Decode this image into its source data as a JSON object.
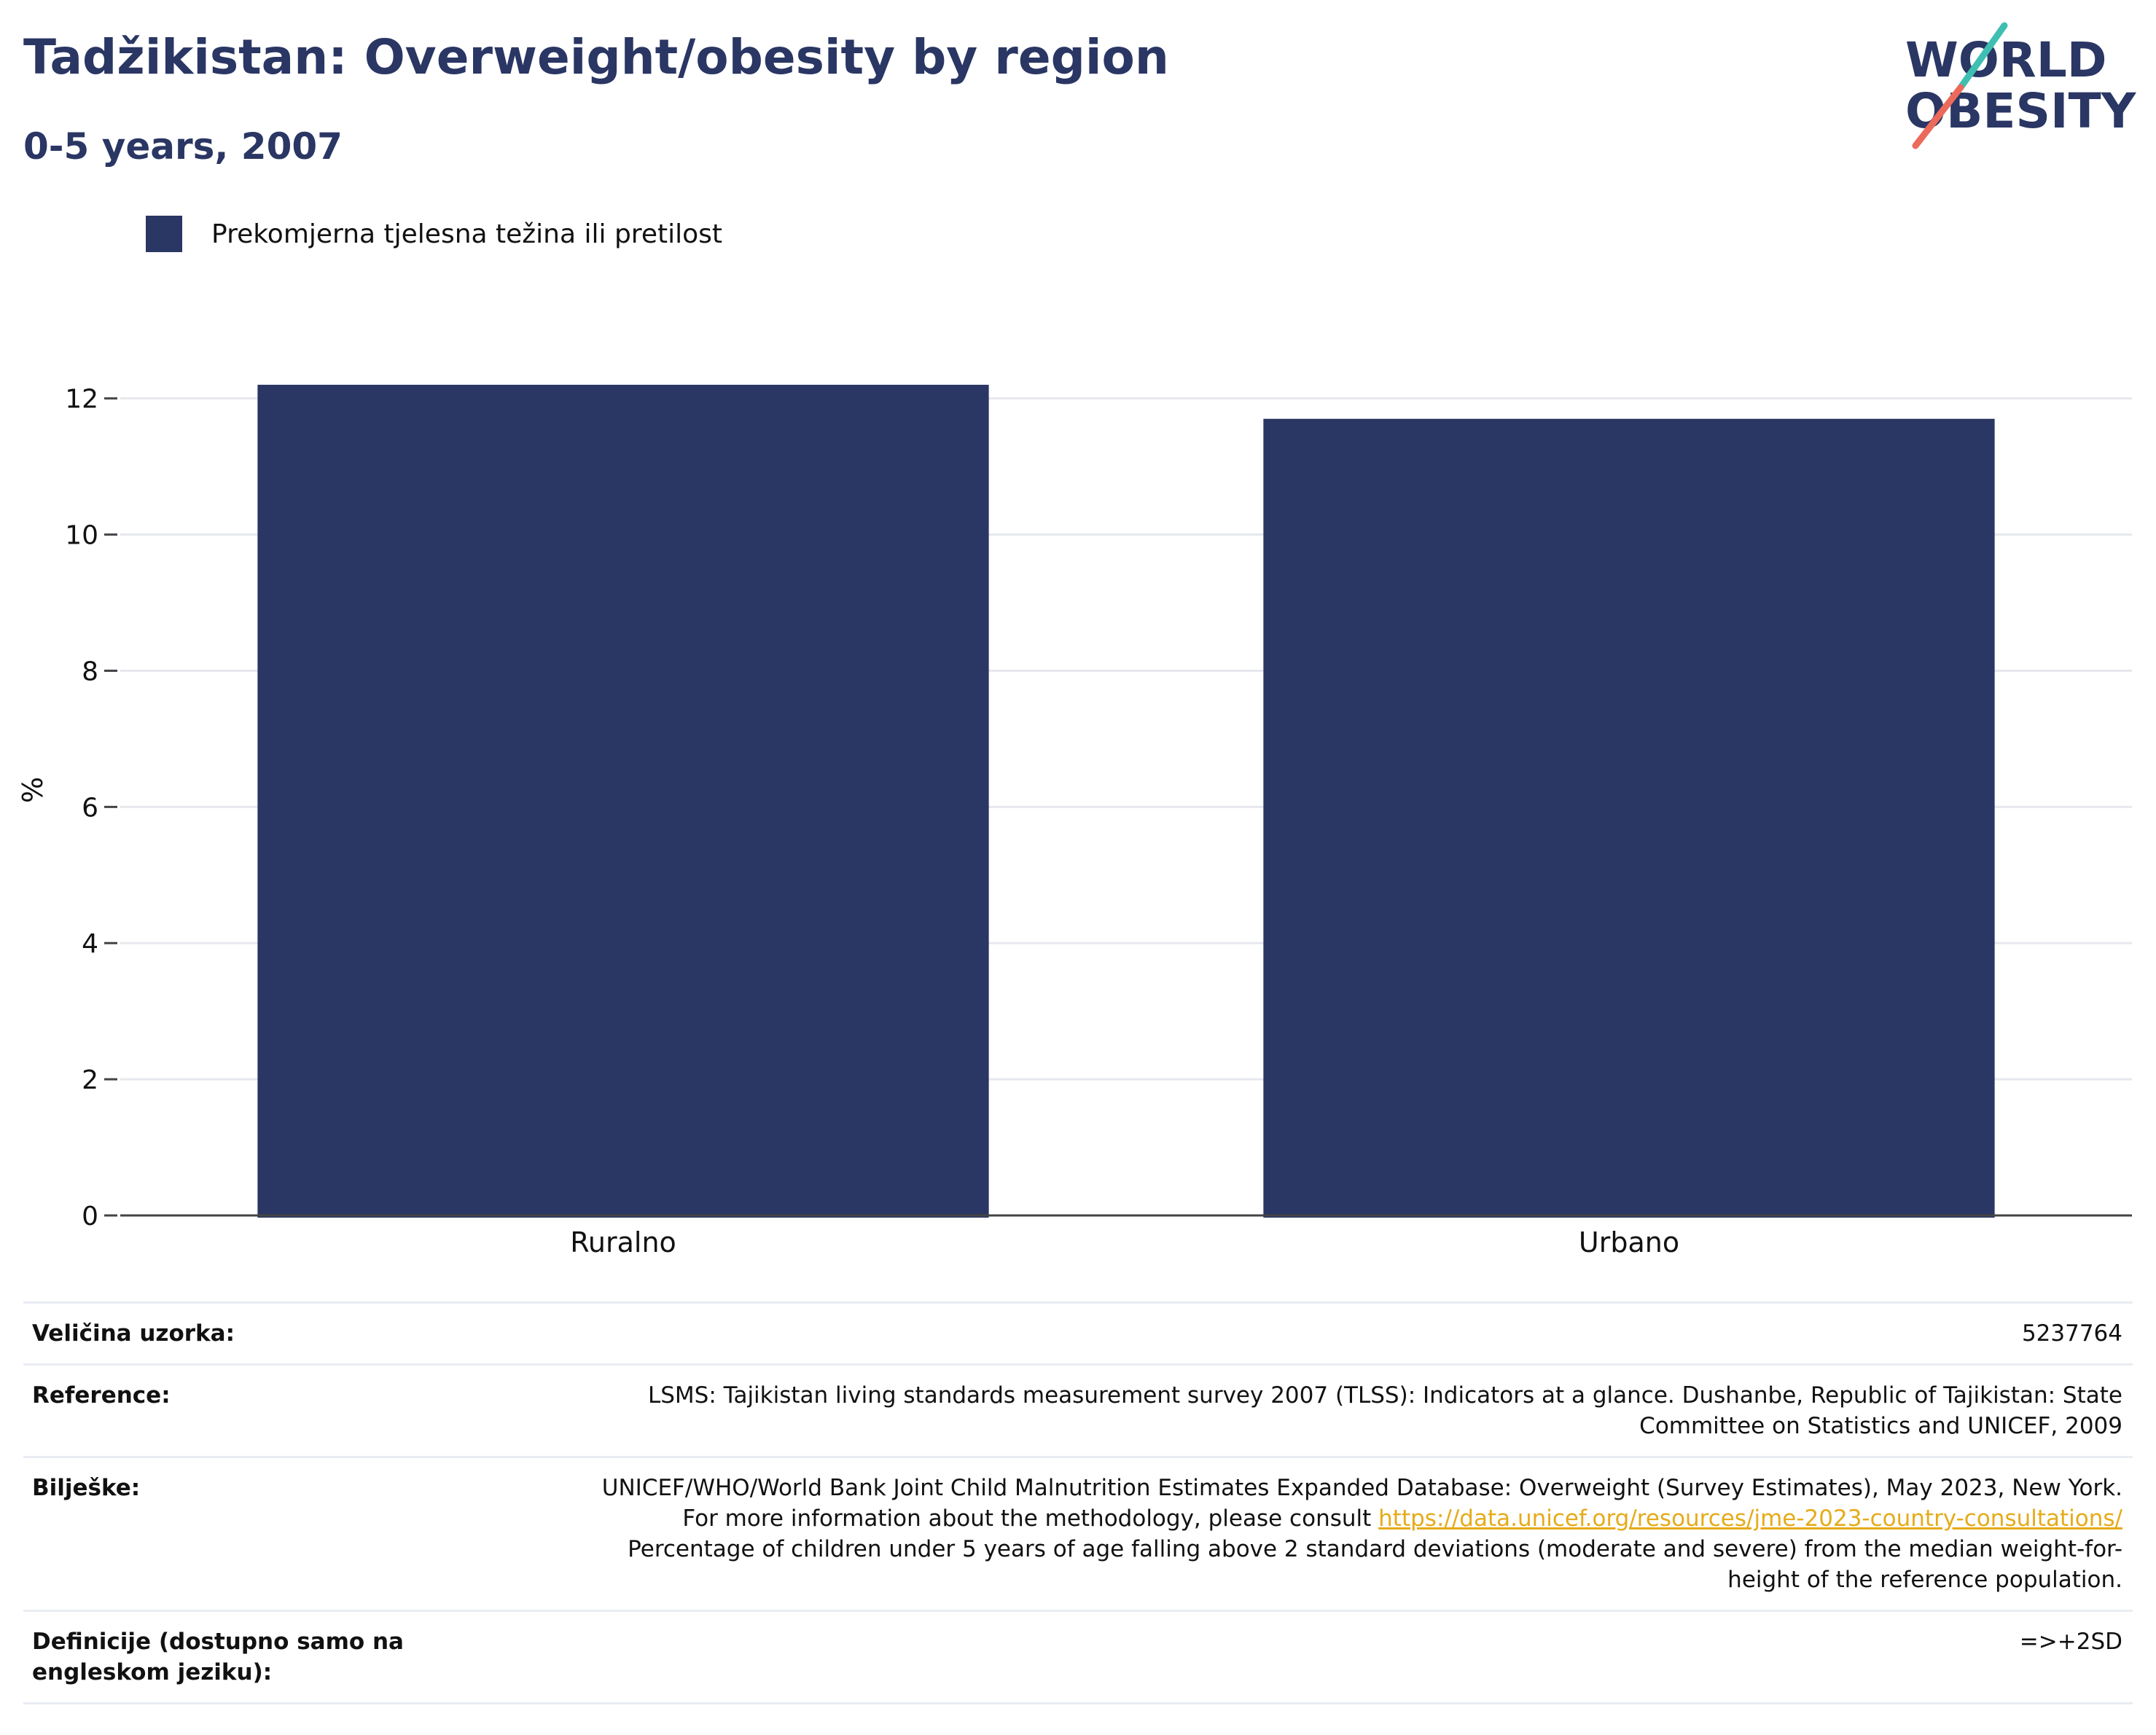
{
  "header": {
    "title": "Tadžikistan: Overweight/obesity by region",
    "subtitle": "0-5 years, 2007"
  },
  "logo": {
    "line1": "WORLD",
    "line2": "OBESITY"
  },
  "legend": {
    "label": "Prekomjerna tjelesna težina ili pretilost",
    "color": "#2a3663"
  },
  "chart_data": {
    "type": "bar",
    "categories": [
      "Ruralno",
      "Urbano"
    ],
    "series": [
      {
        "name": "Prekomjerna tjelesna težina ili pretilost",
        "values": [
          12.2,
          11.7
        ],
        "color": "#2a3663"
      }
    ],
    "ylabel": "%",
    "ylim": [
      0,
      12.5
    ],
    "yticks": [
      0,
      2,
      4,
      6,
      8,
      10,
      12
    ],
    "grid": true
  },
  "info": {
    "sample_size": {
      "label": "Veličina uzorka:",
      "value": "5237764"
    },
    "references": {
      "label": "Reference:",
      "value": "LSMS: Tajikistan living standards measurement survey 2007 (TLSS): Indicators at a glance. Dushanbe, Republic of Tajikistan: State Committee on Statistics and UNICEF, 2009"
    },
    "notes": {
      "label": "Bilješke:",
      "text_before": "UNICEF/WHO/World Bank Joint Child Malnutrition Estimates Expanded Database: Overweight (Survey Estimates), May 2023, New York. For more information about the methodology, please consult",
      "link": "https://data.unicef.org/resources/jme-2023-country-consultations/",
      "text_after": "Percentage of children under 5 years of age falling above 2 standard deviations (moderate and severe) from the median weight-for-height of the reference population."
    },
    "definitions": {
      "label": "Definicije (dostupno samo na engleskom jeziku):",
      "value": "=>+2SD"
    }
  }
}
